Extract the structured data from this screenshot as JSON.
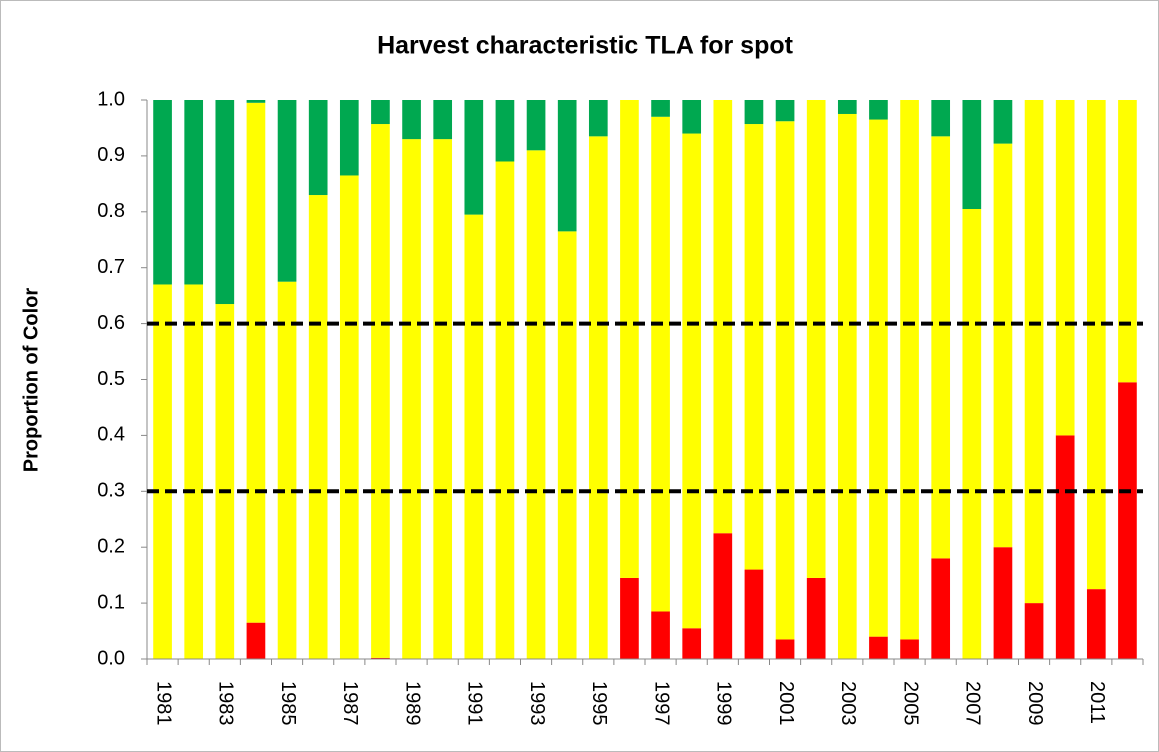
{
  "chart_data": {
    "type": "stacked_bar",
    "title": "Harvest characteristic TLA for spot",
    "y_label": "Proportion of Color",
    "categories": [
      "1981",
      null,
      "1983",
      null,
      "1985",
      null,
      "1987",
      null,
      "1989",
      null,
      "1991",
      null,
      "1993",
      null,
      "1995",
      null,
      "1997",
      null,
      "1999",
      null,
      "2001",
      null,
      "2003",
      null,
      "2005",
      null,
      "2007",
      null,
      "2009",
      null,
      "2011",
      null
    ],
    "series": [
      {
        "color": "#ff0000",
        "values": [
          0,
          0,
          0,
          0.065,
          0,
          0,
          0,
          0.002,
          0,
          0,
          0,
          0,
          0,
          0,
          0,
          0.145,
          0.085,
          0.055,
          0.225,
          0.16,
          0.035,
          0.145,
          0,
          0.04,
          0.035,
          0.18,
          0,
          0.2,
          0.1,
          0.4,
          0.125,
          0.495
        ]
      },
      {
        "color": "#ffff00",
        "values": [
          0.67,
          0.67,
          0.635,
          0.93,
          0.675,
          0.83,
          0.865,
          0.955,
          0.93,
          0.93,
          0.795,
          0.89,
          0.91,
          0.765,
          0.935,
          0.855,
          0.885,
          0.885,
          0.775,
          0.797,
          0.927,
          0.855,
          0.975,
          0.925,
          0.965,
          0.755,
          0.805,
          0.722,
          0.9,
          0.6,
          0.875,
          0.505
        ]
      },
      {
        "color": "#00a850",
        "values": [
          0.33,
          0.33,
          0.365,
          0.005,
          0.325,
          0.17,
          0.135,
          0.043,
          0.07,
          0.07,
          0.205,
          0.11,
          0.09,
          0.235,
          0.065,
          0,
          0.03,
          0.06,
          0,
          0.043,
          0.038,
          0,
          0.025,
          0.035,
          0,
          0.065,
          0.195,
          0.078,
          0,
          0,
          0,
          0
        ]
      }
    ],
    "ylim": [
      0,
      1
    ],
    "yticks": [
      {
        "value": 0,
        "label": "0.0"
      },
      0.1,
      0.2,
      0.3,
      0.4,
      0.5,
      0.6,
      0.7,
      0.8,
      0.9,
      {
        "value": 1,
        "label": "1.0"
      }
    ],
    "reference_lines": [
      0.3,
      0.6
    ]
  }
}
